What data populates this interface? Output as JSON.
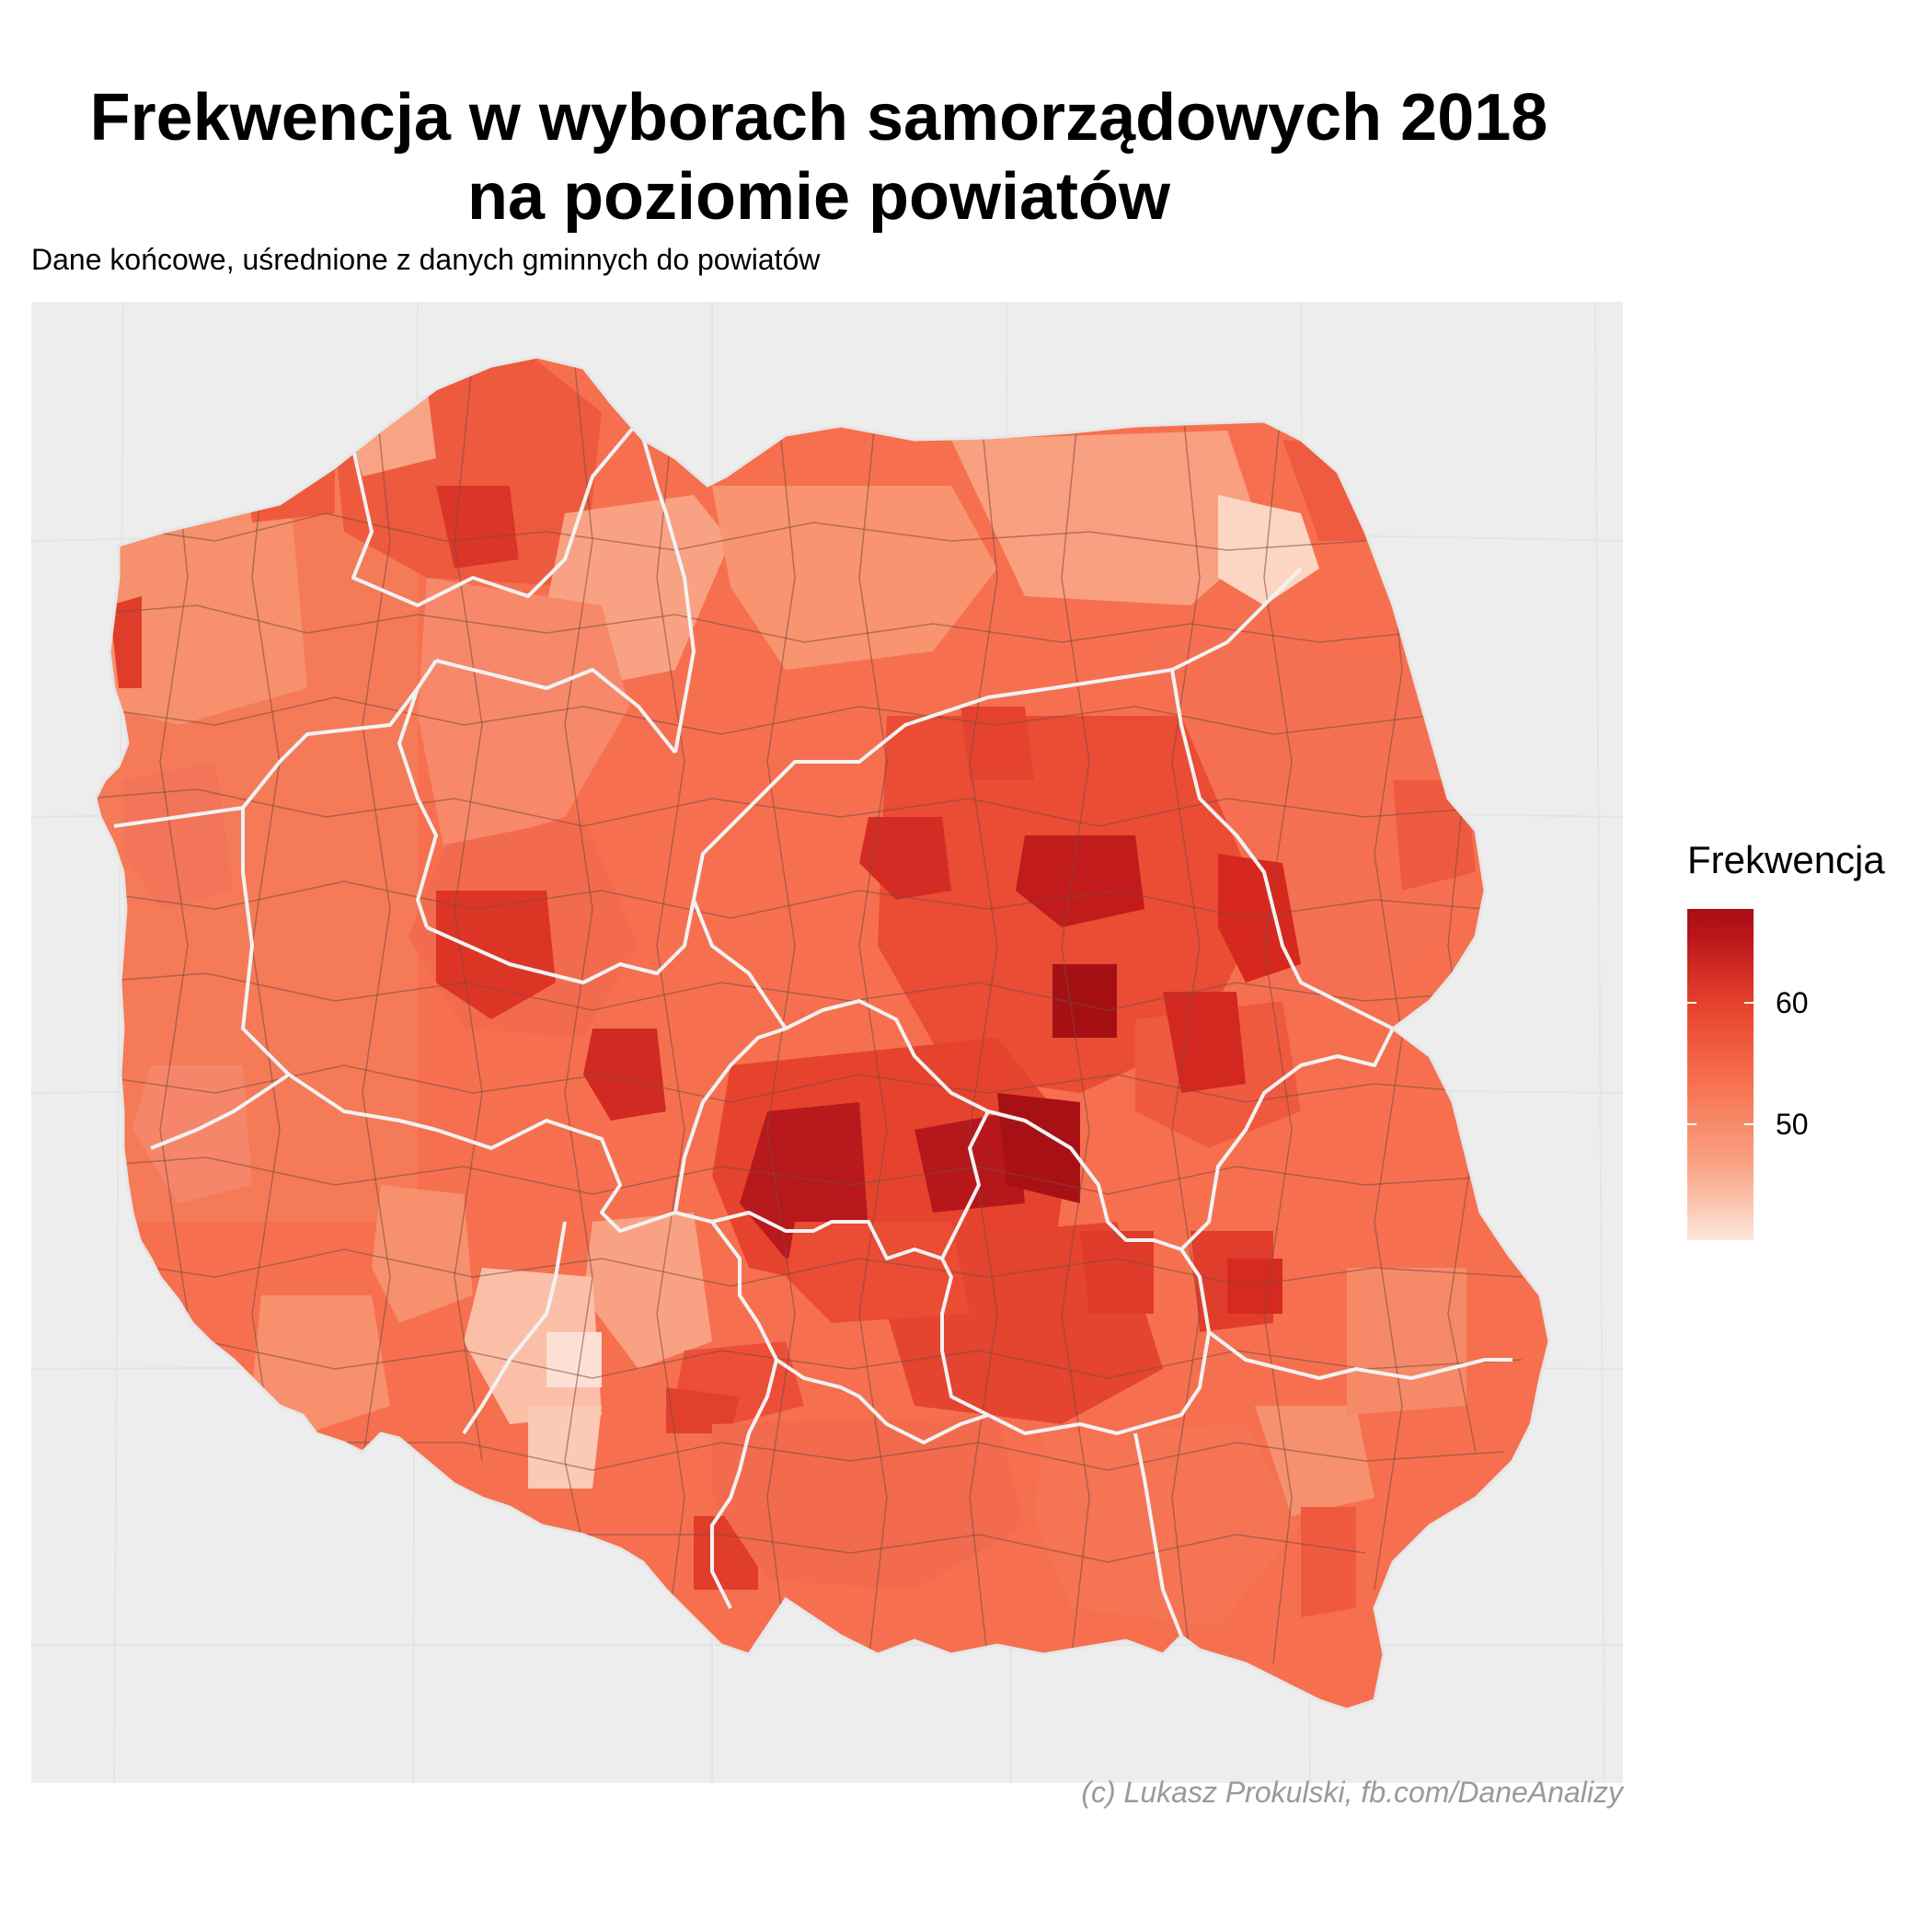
{
  "title_line1": "Frekwencja w wyborach samorządowych 2018",
  "title_line2": "na poziomie powiatów",
  "subtitle": "Dane końcowe, uśrednione z danych gminnych do powiatów",
  "caption": "(c) Lukasz Prokulski, fb.com/DaneAnalizy",
  "map": {
    "country": "Poland",
    "color_scale": {
      "low": "#fde6dc",
      "mid": "#f6704f",
      "high": "#a50f15",
      "min": 42,
      "max": 69
    }
  },
  "legend": {
    "title": "Frekwencja",
    "ticks": [
      {
        "value": 50,
        "label": "50"
      },
      {
        "value": 60,
        "label": "60"
      }
    ]
  }
}
